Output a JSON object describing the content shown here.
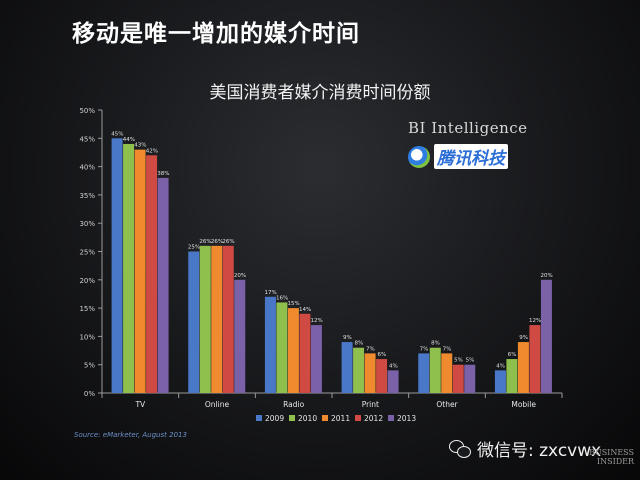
{
  "headline": "移动是唯一增加的媒介时间",
  "watermarks": {
    "bi_logo": "BI Intelligence",
    "tencent_logo": "腾讯科技",
    "source": "Source: eMarketer, August 2013",
    "wechat": "微信号: zxcvwx",
    "business_insider": "BUSINESS INSIDER"
  },
  "colors": {
    "2009": "#4a78c8",
    "2010": "#8fbf4c",
    "2011": "#ef8a2e",
    "2012": "#cf4a42",
    "2013": "#7b62a8"
  },
  "chart_data": {
    "type": "bar",
    "title": "美国消费者媒介消费时间份额",
    "xlabel": "",
    "ylabel": "",
    "ylim": [
      0,
      50
    ],
    "yticks": [
      "0%",
      "5%",
      "10%",
      "15%",
      "20%",
      "25%",
      "30%",
      "35%",
      "40%",
      "45%",
      "50%"
    ],
    "categories": [
      "TV",
      "Online",
      "Radio",
      "Print",
      "Other",
      "Mobile"
    ],
    "legend_position": "bottom",
    "grid": false,
    "series": [
      {
        "name": "2009",
        "values": [
          45,
          25,
          17,
          9,
          7,
          4
        ],
        "labels": [
          "45%",
          "25%",
          "17%",
          "9%",
          "7%",
          "4%"
        ]
      },
      {
        "name": "2010",
        "values": [
          44,
          26,
          16,
          8,
          8,
          6
        ],
        "labels": [
          "44%",
          "26%",
          "16%",
          "8%",
          "8%",
          "6%"
        ]
      },
      {
        "name": "2011",
        "values": [
          43,
          26,
          15,
          7,
          7,
          9
        ],
        "labels": [
          "43%",
          "26%",
          "15%",
          "7%",
          "7%",
          "9%"
        ]
      },
      {
        "name": "2012",
        "values": [
          42,
          26,
          14,
          6,
          5,
          12
        ],
        "labels": [
          "42%",
          "26%",
          "14%",
          "6%",
          "5%",
          "12%"
        ]
      },
      {
        "name": "2013",
        "values": [
          38,
          20,
          12,
          4,
          5,
          20
        ],
        "labels": [
          "38%",
          "20%",
          "12%",
          "4%",
          "5%",
          "20%"
        ]
      }
    ]
  }
}
